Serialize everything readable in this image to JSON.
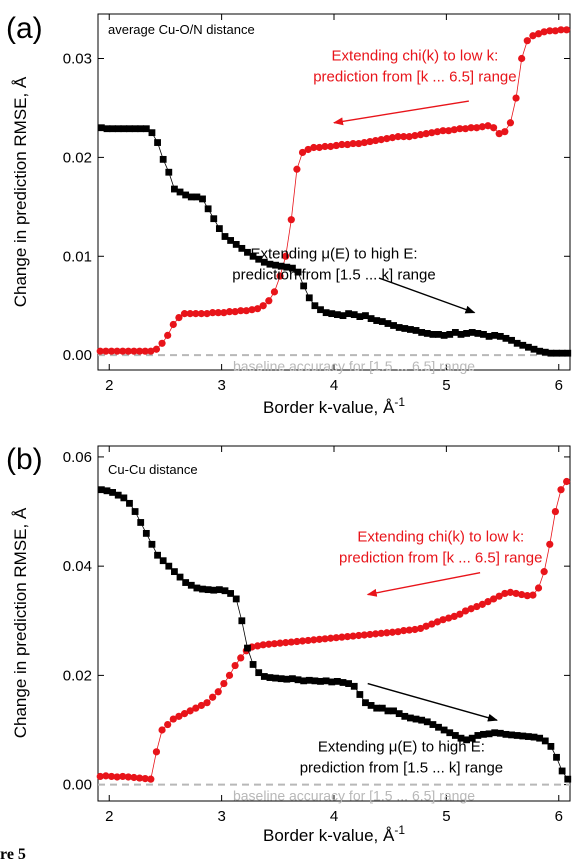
{
  "figure_caption_fragment": "re 5",
  "colors": {
    "red": "#e8141a",
    "black": "#000000",
    "baseline": "#b8b8b8"
  },
  "chart_data": [
    {
      "type": "scatter",
      "panel_label": "(a)",
      "note": "average Cu-O/N distance",
      "xlabel": "Border k-value, Å",
      "xlabel_sup": "-1",
      "ylabel": "Change in prediction RMSE, Å",
      "xlim": [
        1.9,
        6.1
      ],
      "ylim": [
        -0.0015,
        0.0345
      ],
      "xticks": [
        2,
        3,
        4,
        5,
        6
      ],
      "yticks": [
        0.0,
        0.01,
        0.02,
        0.03
      ],
      "ytick_labels": [
        "0.00",
        "0.01",
        "0.02",
        "0.03"
      ],
      "baseline": {
        "y": 0,
        "label": "baseline accuracy for [1.5 ... 6.5] range"
      },
      "annotations": [
        {
          "lines": [
            "Extending chi(k) to low k:",
            "prediction from [k ... 6.5] range"
          ],
          "color": "#e8141a",
          "x": 4.72,
          "y": 0.0298,
          "arrow": [
            5.2,
            0.0257,
            4.0,
            0.0235
          ]
        },
        {
          "lines": [
            "Extending μ(E) to high E:",
            "prediction from [1.5 ... k] range"
          ],
          "color": "#000000",
          "x": 4.0,
          "y": 0.0098,
          "arrow": [
            4.4,
            0.0078,
            5.25,
            0.0043
          ]
        }
      ],
      "series": [
        {
          "color": "#e8141a",
          "marker": "circle",
          "x": [
            1.92,
            1.97,
            2.02,
            2.07,
            2.12,
            2.17,
            2.22,
            2.27,
            2.32,
            2.37,
            2.42,
            2.47,
            2.52,
            2.57,
            2.62,
            2.67,
            2.72,
            2.77,
            2.82,
            2.87,
            2.92,
            2.97,
            3.02,
            3.07,
            3.12,
            3.17,
            3.22,
            3.27,
            3.32,
            3.37,
            3.42,
            3.47,
            3.52,
            3.57,
            3.62,
            3.67,
            3.72,
            3.77,
            3.82,
            3.87,
            3.92,
            3.97,
            4.02,
            4.07,
            4.12,
            4.17,
            4.22,
            4.27,
            4.32,
            4.37,
            4.42,
            4.47,
            4.52,
            4.57,
            4.62,
            4.67,
            4.72,
            4.77,
            4.82,
            4.87,
            4.92,
            4.97,
            5.02,
            5.07,
            5.12,
            5.17,
            5.22,
            5.27,
            5.32,
            5.37,
            5.42,
            5.47,
            5.52,
            5.57,
            5.62,
            5.67,
            5.72,
            5.77,
            5.82,
            5.87,
            5.92,
            5.97,
            6.02,
            6.07
          ],
          "y": [
            0.0004,
            0.0004,
            0.0004,
            0.0004,
            0.0004,
            0.0004,
            0.0004,
            0.0004,
            0.0004,
            0.0004,
            0.0006,
            0.0012,
            0.002,
            0.0031,
            0.0038,
            0.0042,
            0.0042,
            0.0042,
            0.0042,
            0.0042,
            0.0043,
            0.0043,
            0.0043,
            0.0044,
            0.0044,
            0.0045,
            0.0045,
            0.0046,
            0.0047,
            0.005,
            0.0055,
            0.0064,
            0.008,
            0.01,
            0.0137,
            0.0188,
            0.0205,
            0.0208,
            0.021,
            0.021,
            0.0211,
            0.0211,
            0.0212,
            0.0213,
            0.0213,
            0.0214,
            0.0214,
            0.0215,
            0.0216,
            0.0217,
            0.0218,
            0.0219,
            0.022,
            0.0221,
            0.0221,
            0.0221,
            0.0222,
            0.0223,
            0.0224,
            0.0225,
            0.0226,
            0.0227,
            0.0227,
            0.0228,
            0.0229,
            0.0229,
            0.023,
            0.023,
            0.0231,
            0.0232,
            0.023,
            0.0224,
            0.0226,
            0.0235,
            0.026,
            0.03,
            0.0318,
            0.0323,
            0.0325,
            0.0327,
            0.0328,
            0.0328,
            0.0329,
            0.0329
          ]
        },
        {
          "color": "#000000",
          "marker": "square",
          "x": [
            1.93,
            1.98,
            2.03,
            2.08,
            2.13,
            2.18,
            2.23,
            2.28,
            2.33,
            2.38,
            2.43,
            2.48,
            2.53,
            2.58,
            2.63,
            2.68,
            2.73,
            2.78,
            2.83,
            2.88,
            2.93,
            2.98,
            3.03,
            3.08,
            3.13,
            3.18,
            3.23,
            3.28,
            3.33,
            3.38,
            3.43,
            3.48,
            3.53,
            3.58,
            3.63,
            3.68,
            3.73,
            3.78,
            3.83,
            3.88,
            3.93,
            3.98,
            4.03,
            4.08,
            4.13,
            4.18,
            4.23,
            4.28,
            4.33,
            4.38,
            4.43,
            4.48,
            4.53,
            4.58,
            4.63,
            4.68,
            4.73,
            4.78,
            4.83,
            4.88,
            4.93,
            4.98,
            5.03,
            5.08,
            5.13,
            5.18,
            5.23,
            5.28,
            5.33,
            5.38,
            5.43,
            5.48,
            5.53,
            5.58,
            5.63,
            5.68,
            5.73,
            5.78,
            5.83,
            5.88,
            5.93,
            5.98,
            6.03,
            6.08
          ],
          "y": [
            0.023,
            0.0229,
            0.0229,
            0.0229,
            0.0229,
            0.0229,
            0.0229,
            0.0229,
            0.0229,
            0.0225,
            0.0215,
            0.0198,
            0.0185,
            0.0168,
            0.0165,
            0.0162,
            0.016,
            0.016,
            0.0158,
            0.0148,
            0.0138,
            0.0128,
            0.012,
            0.0116,
            0.0112,
            0.0108,
            0.0104,
            0.01,
            0.0097,
            0.0094,
            0.0092,
            0.0091,
            0.009,
            0.0089,
            0.0088,
            0.0084,
            0.007,
            0.0058,
            0.005,
            0.0046,
            0.0043,
            0.0042,
            0.0041,
            0.004,
            0.0042,
            0.0041,
            0.0039,
            0.004,
            0.0037,
            0.0035,
            0.0034,
            0.0032,
            0.003,
            0.0028,
            0.0027,
            0.0026,
            0.0025,
            0.0023,
            0.0022,
            0.0021,
            0.0021,
            0.002,
            0.0021,
            0.0023,
            0.0021,
            0.0022,
            0.0023,
            0.0022,
            0.0021,
            0.0019,
            0.002,
            0.0019,
            0.0017,
            0.0015,
            0.0012,
            0.001,
            0.0008,
            0.0006,
            0.0004,
            0.0003,
            0.0002,
            0.0002,
            0.0002,
            0.0002
          ]
        }
      ]
    },
    {
      "type": "scatter",
      "panel_label": "(b)",
      "note": "Cu-Cu distance",
      "xlabel": "Border k-value, Å",
      "xlabel_sup": "-1",
      "ylabel": "Change in prediction RMSE, Å",
      "xlim": [
        1.9,
        6.1
      ],
      "ylim": [
        -0.003,
        0.062
      ],
      "xticks": [
        2,
        3,
        4,
        5,
        6
      ],
      "yticks": [
        0.0,
        0.02,
        0.04,
        0.06
      ],
      "ytick_labels": [
        "0.00",
        "0.02",
        "0.04",
        "0.06"
      ],
      "baseline": {
        "y": 0,
        "label": "baseline accuracy for [1.5 ... 6.5] range"
      },
      "annotations": [
        {
          "lines": [
            "Extending chi(k) to low k:",
            "prediction from [k ... 6.5] range"
          ],
          "color": "#e8141a",
          "x": 4.95,
          "y": 0.0445,
          "arrow": [
            5.3,
            0.0388,
            4.3,
            0.0348
          ]
        },
        {
          "lines": [
            "Extending μ(E) to high E:",
            "prediction from [1.5 ... k] range"
          ],
          "color": "#000000",
          "x": 4.6,
          "y": 0.0061,
          "arrow": [
            4.3,
            0.0185,
            5.45,
            0.0118
          ]
        }
      ],
      "series": [
        {
          "color": "#e8141a",
          "marker": "circle",
          "x": [
            1.92,
            1.97,
            2.02,
            2.07,
            2.12,
            2.17,
            2.22,
            2.27,
            2.32,
            2.37,
            2.42,
            2.47,
            2.52,
            2.57,
            2.62,
            2.67,
            2.72,
            2.77,
            2.82,
            2.87,
            2.92,
            2.97,
            3.02,
            3.07,
            3.12,
            3.17,
            3.22,
            3.27,
            3.32,
            3.37,
            3.42,
            3.47,
            3.52,
            3.57,
            3.62,
            3.67,
            3.72,
            3.77,
            3.82,
            3.87,
            3.92,
            3.97,
            4.02,
            4.07,
            4.12,
            4.17,
            4.22,
            4.27,
            4.32,
            4.37,
            4.42,
            4.47,
            4.52,
            4.57,
            4.62,
            4.67,
            4.72,
            4.77,
            4.82,
            4.87,
            4.92,
            4.97,
            5.02,
            5.07,
            5.12,
            5.17,
            5.22,
            5.27,
            5.32,
            5.37,
            5.42,
            5.47,
            5.52,
            5.57,
            5.62,
            5.67,
            5.72,
            5.77,
            5.82,
            5.87,
            5.92,
            5.97,
            6.02,
            6.07
          ],
          "y": [
            0.0015,
            0.0016,
            0.0015,
            0.0014,
            0.0015,
            0.0014,
            0.0013,
            0.0012,
            0.0011,
            0.001,
            0.006,
            0.01,
            0.011,
            0.012,
            0.0125,
            0.013,
            0.0135,
            0.014,
            0.0145,
            0.015,
            0.016,
            0.017,
            0.0185,
            0.02,
            0.0218,
            0.0232,
            0.0245,
            0.0252,
            0.0254,
            0.0256,
            0.0257,
            0.0258,
            0.0259,
            0.026,
            0.0261,
            0.0262,
            0.0263,
            0.0264,
            0.0265,
            0.0266,
            0.0267,
            0.0268,
            0.0269,
            0.027,
            0.0271,
            0.0272,
            0.0273,
            0.0274,
            0.0275,
            0.0276,
            0.0277,
            0.0278,
            0.0279,
            0.028,
            0.0282,
            0.0283,
            0.0284,
            0.0286,
            0.029,
            0.0294,
            0.0298,
            0.0302,
            0.0305,
            0.0308,
            0.0312,
            0.0318,
            0.0322,
            0.0326,
            0.033,
            0.0335,
            0.034,
            0.0345,
            0.035,
            0.0352,
            0.035,
            0.0348,
            0.0346,
            0.0347,
            0.036,
            0.039,
            0.044,
            0.05,
            0.054,
            0.0555
          ]
        },
        {
          "color": "#000000",
          "marker": "square",
          "x": [
            1.93,
            1.98,
            2.03,
            2.08,
            2.13,
            2.18,
            2.23,
            2.28,
            2.33,
            2.38,
            2.43,
            2.48,
            2.53,
            2.58,
            2.63,
            2.68,
            2.73,
            2.78,
            2.83,
            2.88,
            2.93,
            2.98,
            3.03,
            3.08,
            3.13,
            3.18,
            3.23,
            3.28,
            3.33,
            3.38,
            3.43,
            3.48,
            3.53,
            3.58,
            3.63,
            3.68,
            3.73,
            3.78,
            3.83,
            3.88,
            3.93,
            3.98,
            4.03,
            4.08,
            4.13,
            4.18,
            4.23,
            4.28,
            4.33,
            4.38,
            4.43,
            4.48,
            4.53,
            4.58,
            4.63,
            4.68,
            4.73,
            4.78,
            4.83,
            4.88,
            4.93,
            4.98,
            5.03,
            5.08,
            5.13,
            5.18,
            5.23,
            5.28,
            5.33,
            5.38,
            5.43,
            5.48,
            5.53,
            5.58,
            5.63,
            5.68,
            5.73,
            5.78,
            5.83,
            5.88,
            5.93,
            5.98,
            6.03,
            6.08
          ],
          "y": [
            0.054,
            0.0538,
            0.0535,
            0.053,
            0.0525,
            0.0515,
            0.05,
            0.048,
            0.046,
            0.044,
            0.042,
            0.041,
            0.04,
            0.039,
            0.038,
            0.037,
            0.0365,
            0.036,
            0.0358,
            0.0357,
            0.0356,
            0.0357,
            0.0355,
            0.035,
            0.034,
            0.03,
            0.025,
            0.022,
            0.0205,
            0.0198,
            0.0196,
            0.0195,
            0.0194,
            0.0193,
            0.0194,
            0.0192,
            0.019,
            0.0191,
            0.019,
            0.0189,
            0.019,
            0.0188,
            0.0189,
            0.0187,
            0.0185,
            0.018,
            0.0165,
            0.015,
            0.0145,
            0.014,
            0.014,
            0.0135,
            0.0135,
            0.013,
            0.0125,
            0.0122,
            0.012,
            0.0118,
            0.0115,
            0.011,
            0.0105,
            0.01,
            0.0095,
            0.009,
            0.0085,
            0.0082,
            0.0085,
            0.009,
            0.0092,
            0.0093,
            0.0095,
            0.0094,
            0.0092,
            0.0091,
            0.009,
            0.0089,
            0.0088,
            0.0087,
            0.0085,
            0.008,
            0.007,
            0.005,
            0.0025,
            0.001
          ]
        }
      ]
    }
  ]
}
